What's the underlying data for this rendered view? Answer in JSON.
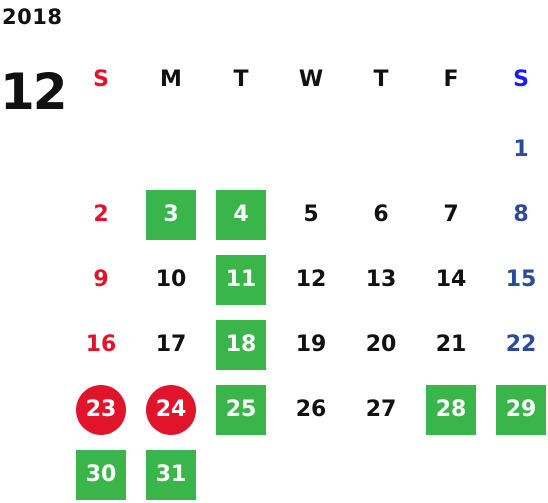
{
  "year": "2018",
  "month": "12",
  "weekdays": [
    "S",
    "M",
    "T",
    "W",
    "T",
    "F",
    "S"
  ],
  "colors": {
    "sunday": "#e0142b",
    "saturday": "#2a4a9c",
    "saturday_header": "#1a1aff",
    "weekday": "#111111",
    "highlight_green": "#3ab54a",
    "highlight_red": "#e0142b"
  },
  "weeks": [
    [
      null,
      null,
      null,
      null,
      null,
      null,
      {
        "day": "1"
      }
    ],
    [
      {
        "day": "2"
      },
      {
        "day": "3",
        "mark": "green"
      },
      {
        "day": "4",
        "mark": "green"
      },
      {
        "day": "5"
      },
      {
        "day": "6"
      },
      {
        "day": "7"
      },
      {
        "day": "8"
      }
    ],
    [
      {
        "day": "9"
      },
      {
        "day": "10"
      },
      {
        "day": "11",
        "mark": "green"
      },
      {
        "day": "12"
      },
      {
        "day": "13"
      },
      {
        "day": "14"
      },
      {
        "day": "15"
      }
    ],
    [
      {
        "day": "16"
      },
      {
        "day": "17"
      },
      {
        "day": "18",
        "mark": "green"
      },
      {
        "day": "19"
      },
      {
        "day": "20"
      },
      {
        "day": "21"
      },
      {
        "day": "22"
      }
    ],
    [
      {
        "day": "23",
        "mark": "red"
      },
      {
        "day": "24",
        "mark": "red"
      },
      {
        "day": "25",
        "mark": "green"
      },
      {
        "day": "26"
      },
      {
        "day": "27"
      },
      {
        "day": "28",
        "mark": "green"
      },
      {
        "day": "29",
        "mark": "green"
      }
    ],
    [
      {
        "day": "30",
        "mark": "green"
      },
      {
        "day": "31",
        "mark": "green"
      },
      null,
      null,
      null,
      null,
      null
    ]
  ]
}
